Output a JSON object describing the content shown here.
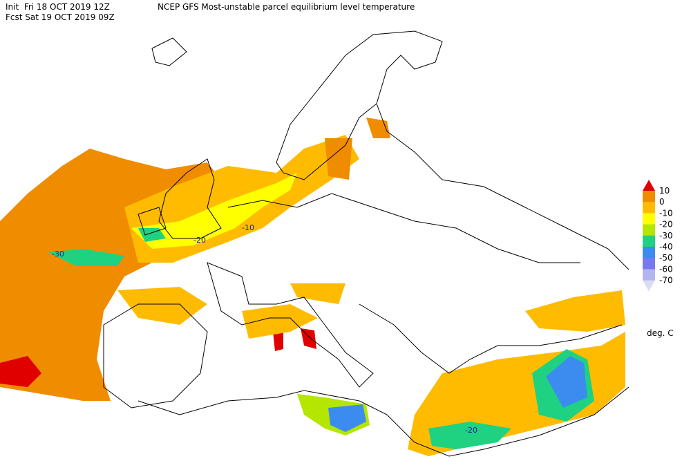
{
  "header": {
    "init": "Init  Fri 18 OCT 2019 12Z",
    "title": "NCEP GFS Most-unstable parcel equilibrium level temperature",
    "fcst": "Fcst Sat 19 OCT 2019 09Z"
  },
  "legend": {
    "labels": [
      10,
      0,
      -10,
      -20,
      -30,
      -40,
      -50,
      -60,
      -70
    ],
    "colors": [
      "#e00000",
      "#f08c00",
      "#ffbb00",
      "#ffff00",
      "#b4e600",
      "#1ed282",
      "#3c8cf0",
      "#7878f0",
      "#b4b4f0",
      "#dcdcf5"
    ],
    "unit": "deg. C"
  },
  "map": {
    "contour_labels": [
      "-10",
      "-20",
      "-30",
      "-20"
    ]
  }
}
